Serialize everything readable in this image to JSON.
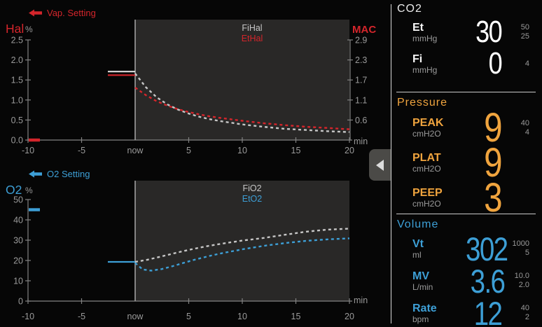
{
  "colors": {
    "red": "#d4252b",
    "blue": "#3d9fd6",
    "orange": "#f0a43e",
    "white": "#f7f7f7",
    "dim_white": "#c6c6c6",
    "hist_white": "#dcdcdc",
    "gray": "#9a9a9a",
    "shade": "#292827",
    "axis": "#828282",
    "nowline": "#a8a8a8"
  },
  "chart_data": [
    {
      "type": "line",
      "id": "hal",
      "accent": "red",
      "setting_label": "Vap. Setting",
      "left_axis": {
        "label": "Hal",
        "unit": "%",
        "range": [
          0,
          2.5
        ],
        "ticks": [
          "0.0",
          "0.5",
          "1.0",
          "1.5",
          "2.0",
          "2.5"
        ]
      },
      "right_axis": {
        "label": "MAC",
        "color": "red",
        "ticks": [
          {
            "label": "2.9",
            "at": 2.5
          },
          {
            "label": "2.3",
            "at": 2.0
          },
          {
            "label": "1.7",
            "at": 1.5
          },
          {
            "label": "1.1",
            "at": 1.0
          },
          {
            "label": "0.6",
            "at": 0.5
          }
        ]
      },
      "x_axis": {
        "range": [
          -10,
          20
        ],
        "ticks": [
          -10,
          -5,
          0,
          5,
          10,
          15,
          20
        ],
        "labels": [
          "-10",
          "-5",
          "now",
          "5",
          "10",
          "15",
          "20"
        ],
        "unit": "min"
      },
      "setting_marker": 0,
      "history": {
        "from": -2.55,
        "to": 0,
        "series": [
          {
            "name": "FiHal",
            "value": 1.71,
            "color": "hist_white"
          },
          {
            "name": "EtHal",
            "value": 1.62,
            "color": "red"
          }
        ]
      },
      "series": [
        {
          "name": "FiHal",
          "color": "dim_white",
          "style": "dashed",
          "x": [
            0,
            1,
            2,
            3,
            4,
            5,
            6,
            7,
            8,
            10,
            12,
            14,
            16,
            18,
            20
          ],
          "y": [
            1.66,
            1.32,
            1.07,
            0.89,
            0.76,
            0.66,
            0.58,
            0.52,
            0.47,
            0.39,
            0.33,
            0.28,
            0.25,
            0.22,
            0.2
          ]
        },
        {
          "name": "EtHal",
          "color": "red",
          "style": "dashed",
          "x": [
            0,
            1,
            2,
            3,
            4,
            5,
            6,
            7,
            8,
            10,
            12,
            14,
            16,
            18,
            20
          ],
          "y": [
            1.31,
            1.12,
            0.97,
            0.86,
            0.77,
            0.7,
            0.64,
            0.59,
            0.55,
            0.48,
            0.42,
            0.37,
            0.33,
            0.3,
            0.27
          ]
        }
      ]
    },
    {
      "type": "line",
      "id": "o2",
      "accent": "blue",
      "setting_label": "O2 Setting",
      "left_axis": {
        "label": "O2",
        "unit": "%",
        "range": [
          0,
          50
        ],
        "ticks": [
          "0",
          "10",
          "20",
          "30",
          "40",
          "50"
        ]
      },
      "x_axis": {
        "range": [
          -10,
          20
        ],
        "ticks": [
          -10,
          -5,
          0,
          5,
          10,
          15,
          20
        ],
        "labels": [
          "-10",
          "-5",
          "now",
          "5",
          "10",
          "15",
          "20"
        ],
        "unit": "min"
      },
      "setting_marker": 45,
      "history": {
        "from": -2.55,
        "to": 0,
        "series": [
          {
            "name": "O2",
            "value": 19.3,
            "color": "blue"
          }
        ]
      },
      "series": [
        {
          "name": "FiO2",
          "color": "dim_white",
          "style": "dashed",
          "x": [
            0,
            1,
            2,
            3,
            4,
            5,
            6,
            7,
            8,
            10,
            12,
            14,
            16,
            18,
            20
          ],
          "y": [
            19.3,
            20.2,
            21.4,
            22.7,
            24.0,
            25.2,
            26.3,
            27.3,
            28.2,
            29.8,
            31.1,
            32.7,
            34.2,
            35.2,
            35.7
          ]
        },
        {
          "name": "EtO2",
          "color": "blue",
          "style": "dashed",
          "x": [
            0,
            0.7,
            1.5,
            2.5,
            3.5,
            4.5,
            5.5,
            7,
            8,
            10,
            12,
            14,
            16,
            18,
            20
          ],
          "y": [
            18.8,
            15.6,
            15.0,
            15.8,
            17.2,
            18.8,
            20.3,
            22.3,
            23.5,
            25.5,
            27.2,
            28.6,
            29.7,
            30.4,
            30.9
          ]
        }
      ]
    }
  ],
  "divider_tab": {
    "icon": "left-triangle"
  },
  "panel": {
    "sections": [
      {
        "title": "CO2",
        "accent": "white",
        "rows": [
          {
            "label": "Et",
            "unit": "mmHg",
            "value": "30",
            "limits": [
              "50",
              "25"
            ]
          },
          {
            "label": "Fi",
            "unit": "mmHg",
            "value": "0",
            "limits": [
              "4"
            ]
          }
        ]
      },
      {
        "title": "Pressure",
        "accent": "orange",
        "rows": [
          {
            "label": "PEAK",
            "unit": "cmH2O",
            "value": "9",
            "limits": [
              "40",
              "4"
            ]
          },
          {
            "label": "PLAT",
            "unit": "cmH2O",
            "value": "9",
            "limits": []
          },
          {
            "label": "PEEP",
            "unit": "cmH2O",
            "value": "3",
            "limits": []
          }
        ]
      },
      {
        "title": "Volume",
        "accent": "blue",
        "rows": [
          {
            "label": "Vt",
            "unit": "ml",
            "value": "302",
            "limits": [
              "1000",
              "5"
            ]
          },
          {
            "label": "MV",
            "unit": "L/min",
            "value": "3.6",
            "limits": [
              "10.0",
              "2.0"
            ]
          },
          {
            "label": "Rate",
            "unit": "bpm",
            "value": "12",
            "limits": [
              "40",
              "2"
            ]
          }
        ]
      }
    ]
  }
}
